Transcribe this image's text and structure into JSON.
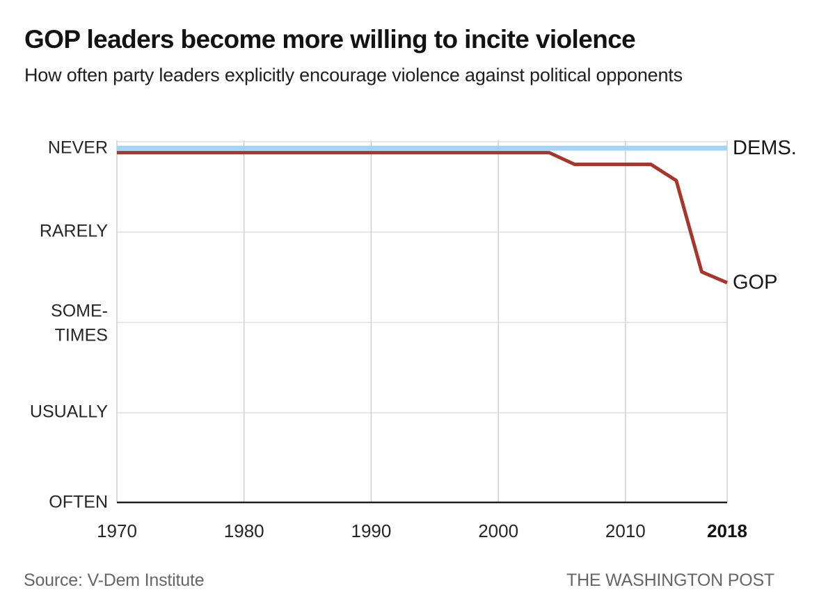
{
  "header": {
    "title": "GOP leaders become more willing to incite violence",
    "subtitle": "How often party leaders explicitly encourage violence against political opponents"
  },
  "footer": {
    "source": "Source: V-Dem Institute",
    "attribution": "THE WASHINGTON POST"
  },
  "colors": {
    "dems_line": "#a3d3f5",
    "gop_line": "#a5372d",
    "gridline_horizontal": "#d6d6d6",
    "gridline_vertical": "#c9c9c9",
    "axis": "#1f1f1f",
    "axis_label": "#262626",
    "end_label": "#161616",
    "muted_text": "#666666"
  },
  "chart_data": {
    "type": "line",
    "title": "GOP leaders become more willing to incite violence",
    "subtitle": "How often party leaders explicitly encourage violence against political opponents",
    "legend_position": "end-of-line labels",
    "grid": true,
    "x_axis": {
      "range": [
        1970,
        2018
      ],
      "ticks": [
        {
          "label": "1970",
          "year": 1970,
          "bold": false
        },
        {
          "label": "1980",
          "year": 1980,
          "bold": false
        },
        {
          "label": "1990",
          "year": 1990,
          "bold": false
        },
        {
          "label": "2000",
          "year": 2000,
          "bold": false
        },
        {
          "label": "2010",
          "year": 2010,
          "bold": false
        },
        {
          "label": "2018",
          "year": 2018,
          "bold": true
        }
      ]
    },
    "y_axis": {
      "description": "frequency scale, 0 = NEVER (top) to 4 = OFTEN (bottom)",
      "categories": [
        {
          "value": 0,
          "lines": [
            "NEVER"
          ]
        },
        {
          "value": 1,
          "lines": [
            "RARELY"
          ]
        },
        {
          "value": 2,
          "lines": [
            "SOME-",
            "TIMES"
          ]
        },
        {
          "value": 3,
          "lines": [
            "USUALLY"
          ]
        },
        {
          "value": 4,
          "lines": [
            "OFTEN"
          ]
        }
      ]
    },
    "series": [
      {
        "name": "DEMS.",
        "color": "#a3d3f5",
        "stroke_width": 7,
        "points": [
          {
            "year": 1970,
            "value": 0.07
          },
          {
            "year": 2018,
            "value": 0.07
          }
        ]
      },
      {
        "name": "GOP",
        "color": "#a5372d",
        "stroke_width": 5,
        "points": [
          {
            "year": 1970,
            "value": 0.12
          },
          {
            "year": 2004,
            "value": 0.12
          },
          {
            "year": 2006,
            "value": 0.25
          },
          {
            "year": 2012,
            "value": 0.25
          },
          {
            "year": 2014,
            "value": 0.43
          },
          {
            "year": 2016,
            "value": 1.44
          },
          {
            "year": 2018,
            "value": 1.56
          }
        ]
      }
    ]
  }
}
